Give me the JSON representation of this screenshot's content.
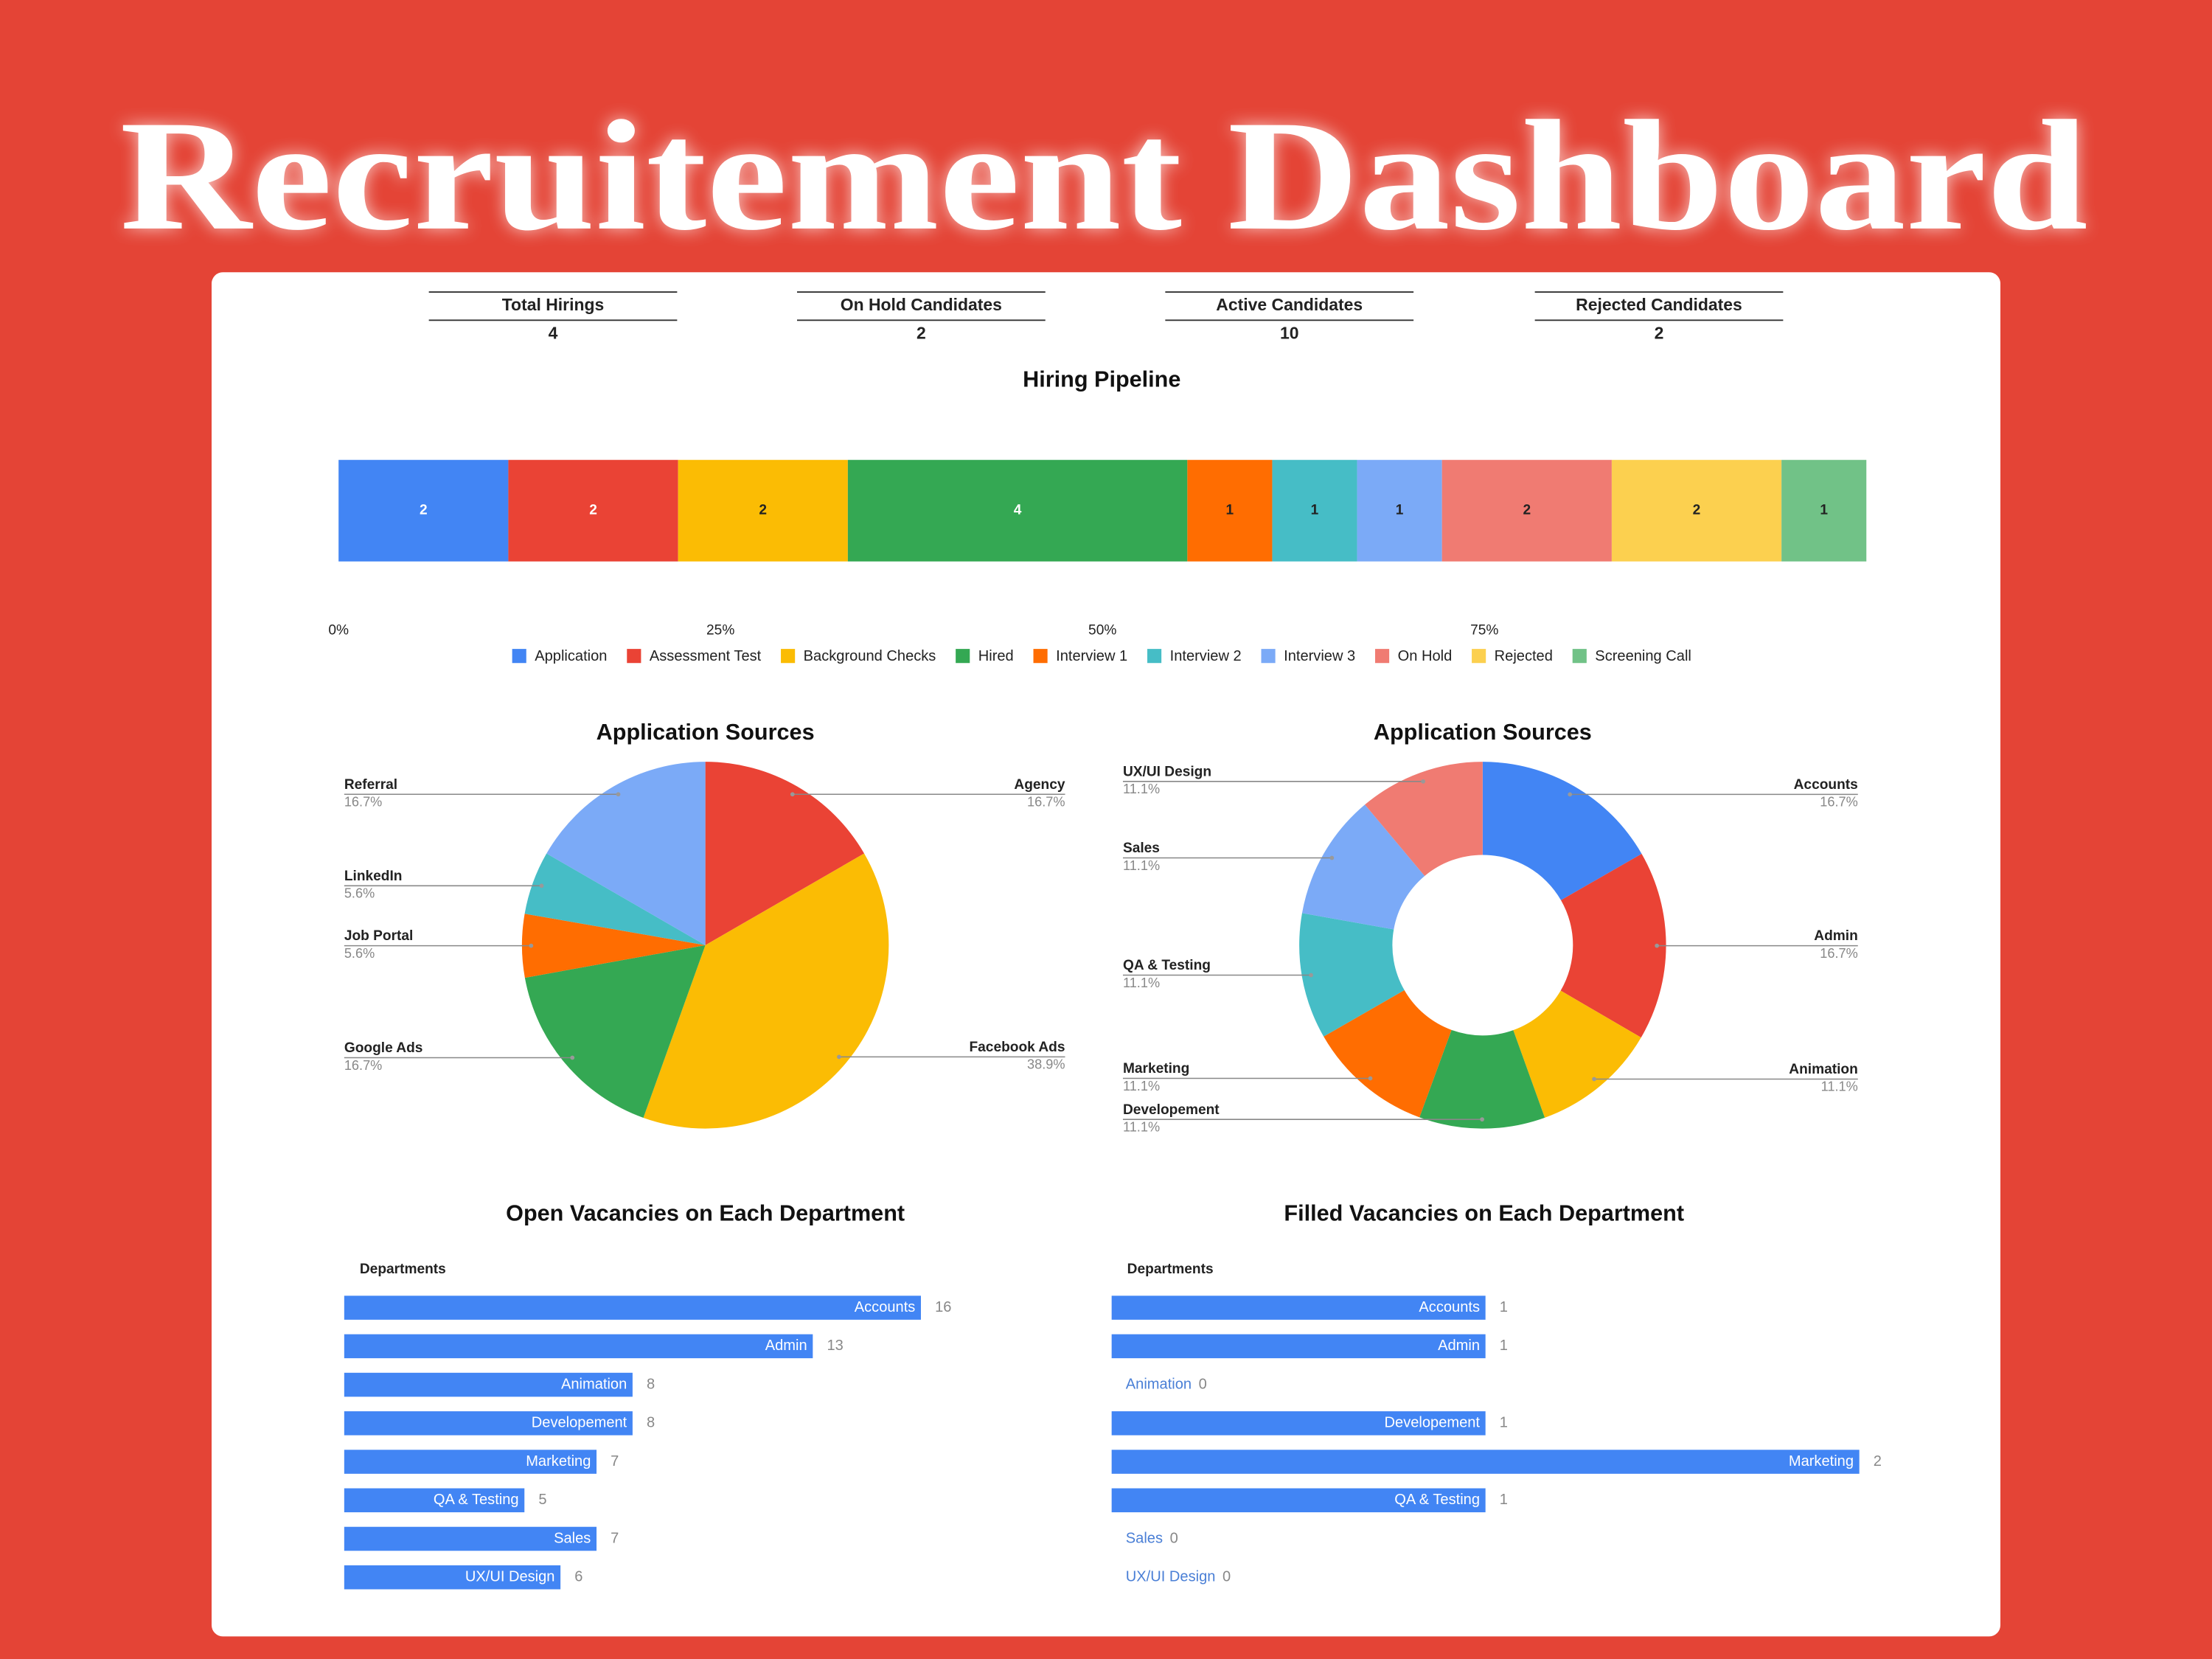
{
  "title": "Recruitement Dashboard",
  "kpis": [
    {
      "label": "Total Hirings",
      "value": 4
    },
    {
      "label": "On Hold Candidates",
      "value": 2
    },
    {
      "label": "Active Candidates",
      "value": 10
    },
    {
      "label": "Rejected Candidates",
      "value": 2
    }
  ],
  "chart_data": [
    {
      "type": "stacked_bar_100",
      "title": "Hiring Pipeline",
      "series": [
        {
          "name": "Application",
          "color": "#4285f4",
          "values": [
            2
          ]
        },
        {
          "name": "Assessment Test",
          "color": "#ea4335",
          "values": [
            2
          ]
        },
        {
          "name": "Background Checks",
          "color": "#fbbc04",
          "values": [
            2
          ]
        },
        {
          "name": "Hired",
          "color": "#34a853",
          "values": [
            4
          ]
        },
        {
          "name": "Interview 1",
          "color": "#ff6d01",
          "values": [
            1
          ]
        },
        {
          "name": "Interview 2",
          "color": "#46bdc6",
          "values": [
            1
          ]
        },
        {
          "name": "Interview 3",
          "color": "#7baaf7",
          "values": [
            1
          ]
        },
        {
          "name": "On Hold",
          "color": "#f07b72",
          "values": [
            2
          ]
        },
        {
          "name": "Rejected",
          "color": "#fcd04f",
          "values": [
            2
          ]
        },
        {
          "name": "Screening Call",
          "color": "#71c287",
          "values": [
            1
          ]
        }
      ],
      "xlim": [
        0,
        100
      ],
      "xticks": [
        {
          "value": 0,
          "label": "0%"
        },
        {
          "value": 25,
          "label": "25%"
        },
        {
          "value": 50,
          "label": "50%"
        },
        {
          "value": 75,
          "label": "75%"
        }
      ]
    },
    {
      "type": "pie",
      "title": "Application Sources",
      "categories": [
        "Agency",
        "Facebook Ads",
        "Google Ads",
        "Job Portal",
        "LinkedIn",
        "Referral"
      ],
      "values": [
        16.7,
        38.9,
        16.7,
        5.6,
        5.6,
        16.7
      ],
      "value_labels": [
        "16.7%",
        "38.9%",
        "16.7%",
        "5.6%",
        "5.6%",
        "16.7%"
      ],
      "colors": [
        "#ea4335",
        "#fbbc04",
        "#34a853",
        "#ff6d01",
        "#46bdc6",
        "#7baaf7"
      ]
    },
    {
      "type": "donut",
      "title": "Application Sources",
      "categories": [
        "Accounts",
        "Admin",
        "Animation",
        "Developement",
        "Marketing",
        "QA & Testing",
        "Sales",
        "UX/UI Design"
      ],
      "values": [
        16.7,
        16.7,
        11.1,
        11.1,
        11.1,
        11.1,
        11.1,
        11.1
      ],
      "value_labels": [
        "16.7%",
        "16.7%",
        "11.1%",
        "11.1%",
        "11.1%",
        "11.1%",
        "11.1%",
        "11.1%"
      ],
      "colors": [
        "#4285f4",
        "#ea4335",
        "#fbbc04",
        "#34a853",
        "#ff6d01",
        "#46bdc6",
        "#7baaf7",
        "#f07b72"
      ]
    },
    {
      "type": "hbar",
      "title": "Open Vacancies on Each Department",
      "y_label": "Departments",
      "categories": [
        "Accounts",
        "Admin",
        "Animation",
        "Developement",
        "Marketing",
        "QA & Testing",
        "Sales",
        "UX/UI Design"
      ],
      "values": [
        16,
        13,
        8,
        8,
        7,
        5,
        7,
        6
      ],
      "color": "#4285f4",
      "xlim": [
        0,
        20
      ]
    },
    {
      "type": "hbar",
      "title": "Filled Vacancies on Each Department",
      "y_label": "Departments",
      "categories": [
        "Accounts",
        "Admin",
        "Animation",
        "Developement",
        "Marketing",
        "QA & Testing",
        "Sales",
        "UX/UI Design"
      ],
      "values": [
        1,
        1,
        0,
        1,
        2,
        1,
        0,
        0
      ],
      "color": "#4285f4",
      "xlim": [
        0,
        2
      ]
    }
  ]
}
